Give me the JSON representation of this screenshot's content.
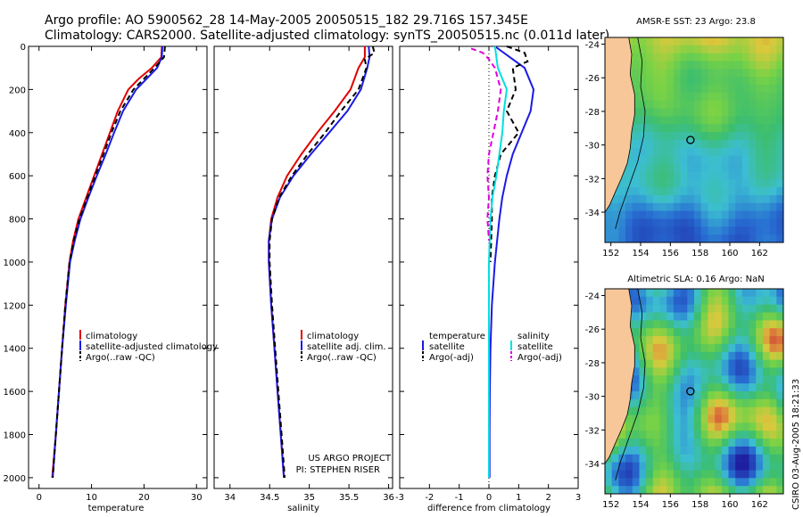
{
  "header": {
    "line1": "Argo profile: AO 5900562_28 14-May-2005 20050515_182 29.716S 157.345E",
    "line2": "Climatology: CARS2000. Satellite-adjusted climatology: synTS_20050515.nc (0.011d later)"
  },
  "colors": {
    "climatology": "#e00000",
    "satellite": "#1a1ae6",
    "argo": "#000000",
    "sal_sat": "#00e0e0",
    "sal_argo": "#e000e0",
    "land": "#f7c79a"
  },
  "chart_data": [
    {
      "id": "temperature",
      "type": "line",
      "xlabel": "temperature",
      "xlim": [
        -2,
        32
      ],
      "ylim": [
        2050,
        0
      ],
      "xticks": [
        0,
        10,
        20,
        30
      ],
      "yticks": [
        0,
        200,
        400,
        600,
        800,
        1000,
        1200,
        1400,
        1600,
        1800,
        2000
      ],
      "legend": [
        "climatology",
        "satellite-adjusted climatology",
        "Argo(..raw -QC)"
      ],
      "series": [
        {
          "name": "climatology",
          "color": "#e00000",
          "points": [
            [
              23.4,
              0
            ],
            [
              23.3,
              50
            ],
            [
              21.5,
              100
            ],
            [
              19,
              150
            ],
            [
              17,
              200
            ],
            [
              15,
              300
            ],
            [
              13.5,
              400
            ],
            [
              12,
              500
            ],
            [
              10.5,
              600
            ],
            [
              9,
              700
            ],
            [
              7.5,
              800
            ],
            [
              6.5,
              900
            ],
            [
              5.8,
              1000
            ],
            [
              5,
              1200
            ],
            [
              4.4,
              1400
            ],
            [
              3.8,
              1600
            ],
            [
              3.2,
              1800
            ],
            [
              2.5,
              2000
            ]
          ]
        },
        {
          "name": "satellite",
          "color": "#1a1ae6",
          "points": [
            [
              23.5,
              0
            ],
            [
              23.4,
              50
            ],
            [
              22.5,
              100
            ],
            [
              20.5,
              150
            ],
            [
              18.5,
              200
            ],
            [
              16,
              300
            ],
            [
              14.3,
              400
            ],
            [
              12.7,
              500
            ],
            [
              11,
              600
            ],
            [
              9.4,
              700
            ],
            [
              7.9,
              800
            ],
            [
              6.8,
              900
            ],
            [
              5.9,
              1000
            ],
            [
              5.1,
              1200
            ],
            [
              4.4,
              1400
            ],
            [
              3.8,
              1600
            ],
            [
              3.2,
              1800
            ],
            [
              2.6,
              2000
            ]
          ]
        },
        {
          "name": "argo",
          "color": "#000000",
          "dash": true,
          "points": [
            [
              24,
              0
            ],
            [
              23.8,
              50
            ],
            [
              22,
              100
            ],
            [
              20,
              150
            ],
            [
              18,
              200
            ],
            [
              15.5,
              300
            ],
            [
              13.8,
              400
            ],
            [
              12.3,
              500
            ],
            [
              10.7,
              600
            ],
            [
              9.2,
              700
            ],
            [
              7.7,
              800
            ],
            [
              6.6,
              900
            ],
            [
              5.8,
              1000
            ],
            [
              5,
              1200
            ],
            [
              4.4,
              1400
            ],
            [
              3.8,
              1600
            ],
            [
              3.2,
              1800
            ],
            [
              2.6,
              2000
            ]
          ]
        }
      ]
    },
    {
      "id": "salinity",
      "type": "line",
      "xlabel": "salinity",
      "xlim": [
        33.8,
        36.05
      ],
      "ylim": [
        2050,
        0
      ],
      "xticks": [
        34,
        34.5,
        35,
        35.5,
        36
      ],
      "legend": [
        "climatology",
        "satellite adj. clim.",
        "Argo(..raw -QC)"
      ],
      "annotation": [
        "US ARGO PROJECT",
        "PI: STEPHEN RISER"
      ],
      "series": [
        {
          "name": "climatology",
          "color": "#e00000",
          "points": [
            [
              35.7,
              0
            ],
            [
              35.7,
              50
            ],
            [
              35.62,
              100
            ],
            [
              35.52,
              200
            ],
            [
              35.32,
              300
            ],
            [
              35.1,
              400
            ],
            [
              34.9,
              500
            ],
            [
              34.72,
              600
            ],
            [
              34.6,
              700
            ],
            [
              34.52,
              800
            ],
            [
              34.49,
              900
            ],
            [
              34.49,
              1000
            ],
            [
              34.52,
              1200
            ],
            [
              34.56,
              1400
            ],
            [
              34.6,
              1600
            ],
            [
              34.64,
              1800
            ],
            [
              34.68,
              2000
            ]
          ]
        },
        {
          "name": "satellite",
          "color": "#1a1ae6",
          "points": [
            [
              35.75,
              0
            ],
            [
              35.76,
              50
            ],
            [
              35.73,
              100
            ],
            [
              35.65,
              200
            ],
            [
              35.48,
              300
            ],
            [
              35.25,
              400
            ],
            [
              35.02,
              500
            ],
            [
              34.8,
              600
            ],
            [
              34.63,
              700
            ],
            [
              34.53,
              800
            ],
            [
              34.49,
              900
            ],
            [
              34.49,
              1000
            ],
            [
              34.52,
              1200
            ],
            [
              34.56,
              1400
            ],
            [
              34.6,
              1600
            ],
            [
              34.64,
              1800
            ],
            [
              34.68,
              2000
            ]
          ]
        },
        {
          "name": "argo",
          "color": "#000000",
          "dash": true,
          "points": [
            [
              35.8,
              0
            ],
            [
              35.82,
              30
            ],
            [
              35.7,
              60
            ],
            [
              35.72,
              100
            ],
            [
              35.62,
              200
            ],
            [
              35.4,
              300
            ],
            [
              35.2,
              400
            ],
            [
              34.98,
              500
            ],
            [
              34.78,
              600
            ],
            [
              34.62,
              700
            ],
            [
              34.53,
              800
            ],
            [
              34.5,
              900
            ],
            [
              34.5,
              1000
            ],
            [
              34.53,
              1200
            ],
            [
              34.57,
              1400
            ],
            [
              34.61,
              1600
            ],
            [
              34.65,
              1800
            ],
            [
              34.69,
              2000
            ]
          ]
        }
      ]
    },
    {
      "id": "difference",
      "type": "line",
      "xlabel": "difference from climatology",
      "xlim": [
        -3,
        3
      ],
      "ylim": [
        2050,
        0
      ],
      "xticks": [
        -3,
        -2,
        -1,
        0,
        1,
        2,
        3
      ],
      "legend_temp": [
        "temperature",
        "satellite",
        "Argo(-adj)"
      ],
      "legend_sal": [
        "salinity",
        "satellite",
        "Argo(-adj)"
      ],
      "series": [
        {
          "name": "temperature satellite",
          "color": "#1a1ae6",
          "points": [
            [
              0.2,
              0
            ],
            [
              0.7,
              50
            ],
            [
              1.2,
              100
            ],
            [
              1.5,
              200
            ],
            [
              1.4,
              300
            ],
            [
              1.1,
              400
            ],
            [
              0.8,
              500
            ],
            [
              0.6,
              600
            ],
            [
              0.45,
              700
            ],
            [
              0.35,
              800
            ],
            [
              0.2,
              1000
            ],
            [
              0.1,
              1200
            ],
            [
              0.05,
              1400
            ],
            [
              0.03,
              1600
            ],
            [
              0.02,
              1800
            ],
            [
              0.02,
              2000
            ]
          ]
        },
        {
          "name": "temperature argo",
          "color": "#000000",
          "dash": true,
          "points": [
            [
              0.6,
              0
            ],
            [
              1.2,
              30
            ],
            [
              1.3,
              70
            ],
            [
              0.8,
              100
            ],
            [
              0.9,
              200
            ],
            [
              0.6,
              300
            ],
            [
              1,
              400
            ],
            [
              0.4,
              500
            ],
            [
              0.2,
              600
            ],
            [
              0.1,
              700
            ],
            [
              0.1,
              800
            ],
            [
              0.05,
              1000
            ]
          ]
        },
        {
          "name": "salinity satellite",
          "color": "#00e0e0",
          "points": [
            [
              0.2,
              0
            ],
            [
              0.3,
              100
            ],
            [
              0.6,
              200
            ],
            [
              0.5,
              300
            ],
            [
              0.45,
              400
            ],
            [
              0.35,
              500
            ],
            [
              0.25,
              600
            ],
            [
              0.12,
              700
            ],
            [
              0.05,
              800
            ],
            [
              0.0,
              1000
            ],
            [
              0.0,
              1200
            ],
            [
              0.0,
              1400
            ],
            [
              0.0,
              2000
            ]
          ]
        },
        {
          "name": "salinity argo",
          "color": "#e000e0",
          "dash": true,
          "points": [
            [
              -0.6,
              10
            ],
            [
              -0.2,
              30
            ],
            [
              0.0,
              60
            ],
            [
              0.2,
              100
            ],
            [
              0.4,
              200
            ],
            [
              0.3,
              300
            ],
            [
              0.15,
              400
            ],
            [
              0.0,
              500
            ],
            [
              -0.05,
              600
            ],
            [
              0.0,
              700
            ],
            [
              -0.05,
              800
            ],
            [
              0.0,
              900
            ]
          ]
        }
      ]
    },
    {
      "id": "sst_map",
      "type": "heatmap",
      "title": "AMSR-E SST: 23 Argo: 23.8",
      "xticks": [
        152,
        154,
        156,
        158,
        160,
        162
      ],
      "yticks": [
        -24,
        -26,
        -28,
        -30,
        -32,
        -34
      ],
      "xlim": [
        151.6,
        163.6
      ],
      "ylim": [
        -35.8,
        -23.6
      ],
      "argo_position": [
        157.35,
        -29.7
      ]
    },
    {
      "id": "sla_map",
      "type": "heatmap",
      "title": "Altimetric SLA: 0.16 Argo: NaN",
      "xticks": [
        152,
        154,
        156,
        158,
        160,
        162
      ],
      "yticks": [
        -24,
        -26,
        -28,
        -30,
        -32,
        -34
      ],
      "xlim": [
        151.6,
        163.6
      ],
      "ylim": [
        -35.8,
        -23.6
      ],
      "argo_position": [
        157.35,
        -29.7
      ]
    }
  ],
  "footer": {
    "stamp": "CSIRO 03-Aug-2005 18:21:33"
  }
}
